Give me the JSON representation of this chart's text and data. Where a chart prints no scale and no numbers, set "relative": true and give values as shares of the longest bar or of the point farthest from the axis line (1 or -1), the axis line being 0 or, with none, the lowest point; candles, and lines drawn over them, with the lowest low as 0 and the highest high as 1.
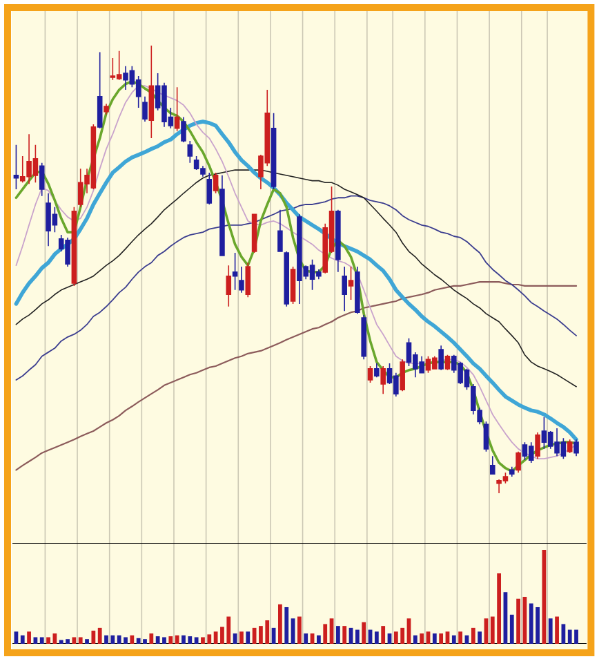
{
  "chart_data": [
    {
      "type": "candlestick",
      "relative": true,
      "categories": [
        null,
        null,
        null,
        null,
        null,
        null,
        null,
        null,
        null,
        null,
        null,
        null,
        null,
        null,
        null,
        null,
        null,
        null,
        null,
        null,
        null,
        null,
        null,
        null,
        null,
        null,
        null,
        null,
        null,
        null,
        null,
        null,
        null,
        null,
        null,
        null,
        null,
        null,
        null,
        null,
        null,
        null,
        null,
        null,
        null,
        null,
        null,
        null,
        null,
        null,
        null,
        null,
        null,
        null,
        null,
        null,
        null,
        null,
        null,
        null,
        null,
        null,
        null,
        null,
        null,
        null,
        null,
        null,
        null,
        null,
        null,
        null,
        null,
        null,
        null,
        null,
        null,
        null,
        null,
        null,
        null,
        null,
        null,
        null,
        null,
        null,
        null,
        null
      ],
      "ohlc": [
        [
          0.71,
          0.778,
          0.679,
          0.704
        ],
        [
          0.698,
          0.753,
          0.694,
          0.707
        ],
        [
          0.707,
          0.802,
          0.691,
          0.741
        ],
        [
          0.71,
          0.778,
          0.694,
          0.747
        ],
        [
          0.731,
          0.738,
          0.664,
          0.679
        ],
        [
          0.648,
          0.67,
          0.552,
          0.586
        ],
        [
          0.623,
          0.639,
          0.583,
          0.599
        ],
        [
          0.568,
          0.577,
          0.54,
          0.546
        ],
        [
          0.565,
          0.571,
          0.506,
          0.512
        ],
        [
          0.469,
          0.639,
          0.463,
          0.63
        ],
        [
          0.645,
          0.725,
          0.639,
          0.694
        ],
        [
          0.691,
          0.725,
          0.67,
          0.71
        ],
        [
          0.682,
          0.824,
          0.679,
          0.818
        ],
        [
          0.886,
          0.985,
          0.815,
          0.818
        ],
        [
          0.852,
          0.87,
          0.846,
          0.864
        ],
        [
          0.929,
          0.972,
          0.923,
          0.932
        ],
        [
          0.926,
          0.988,
          0.923,
          0.935
        ],
        [
          0.938,
          0.954,
          0.901,
          0.923
        ],
        [
          0.944,
          0.954,
          0.907,
          0.914
        ],
        [
          0.923,
          0.932,
          0.861,
          0.886
        ],
        [
          0.873,
          0.886,
          0.83,
          0.836
        ],
        [
          0.833,
          1,
          0.793,
          0.91
        ],
        [
          0.91,
          0.938,
          0.855,
          0.861
        ],
        [
          0.91,
          0.917,
          0.818,
          0.83
        ],
        [
          0.84,
          0.861,
          0.815,
          0.821
        ],
        [
          0.815,
          0.907,
          0.809,
          0.84
        ],
        [
          0.83,
          0.84,
          0.784,
          0.787
        ],
        [
          0.778,
          0.787,
          0.738,
          0.753
        ],
        [
          0.744,
          0.753,
          0.722,
          0.725
        ],
        [
          0.725,
          0.731,
          0.707,
          0.713
        ],
        [
          0.701,
          0.716,
          0.645,
          0.648
        ],
        [
          0.676,
          0.716,
          0.67,
          0.71
        ],
        [
          0.679,
          0.71,
          0.531,
          0.531
        ],
        [
          0.444,
          0.509,
          0.417,
          0.485
        ],
        [
          0.494,
          0.537,
          0.454,
          0.485
        ],
        [
          0.475,
          0.506,
          0.448,
          0.454
        ],
        [
          0.444,
          0.515,
          0.438,
          0.506
        ],
        [
          0.54,
          0.623,
          0.537,
          0.623
        ],
        [
          0.707,
          0.756,
          0.679,
          0.753
        ],
        [
          0.738,
          0.901,
          0.731,
          0.849
        ],
        [
          0.815,
          0.849,
          0.679,
          0.685
        ],
        [
          0.586,
          0.633,
          0.54,
          0.54
        ],
        [
          0.537,
          0.54,
          0.417,
          0.423
        ],
        [
          0.429,
          0.506,
          0.423,
          0.5
        ],
        [
          0.617,
          0.623,
          0.423,
          0.475
        ],
        [
          0.506,
          0.509,
          0.478,
          0.485
        ],
        [
          0.509,
          0.522,
          0.454,
          0.478
        ],
        [
          0.494,
          0.5,
          0.478,
          0.485
        ],
        [
          0.494,
          0.602,
          0.491,
          0.593
        ],
        [
          0.54,
          0.685,
          0.537,
          0.63
        ],
        [
          0.63,
          0.633,
          0.494,
          0.522
        ],
        [
          0.485,
          0.506,
          0.407,
          0.444
        ],
        [
          0.463,
          0.506,
          0.432,
          0.475
        ],
        [
          0.494,
          0.506,
          0.401,
          0.404
        ],
        [
          0.392,
          0.398,
          0.299,
          0.306
        ],
        [
          0.253,
          0.284,
          0.247,
          0.278
        ],
        [
          0.278,
          0.29,
          0.259,
          0.262
        ],
        [
          0.244,
          0.284,
          0.222,
          0.278
        ],
        [
          0.278,
          0.29,
          0.244,
          0.247
        ],
        [
          0.262,
          0.269,
          0.216,
          0.222
        ],
        [
          0.231,
          0.299,
          0.228,
          0.293
        ],
        [
          0.336,
          0.346,
          0.284,
          0.293
        ],
        [
          0.309,
          0.315,
          0.259,
          0.278
        ],
        [
          0.293,
          0.306,
          0.269,
          0.269
        ],
        [
          0.275,
          0.306,
          0.269,
          0.299
        ],
        [
          0.278,
          0.306,
          0.278,
          0.302
        ],
        [
          0.321,
          0.33,
          0.275,
          0.278
        ],
        [
          0.278,
          0.309,
          0.275,
          0.306
        ],
        [
          0.306,
          0.309,
          0.269,
          0.275
        ],
        [
          0.29,
          0.293,
          0.244,
          0.247
        ],
        [
          0.275,
          0.278,
          0.231,
          0.238
        ],
        [
          0.238,
          0.244,
          0.176,
          0.185
        ],
        [
          0.185,
          0.191,
          0.154,
          0.16
        ],
        [
          0.154,
          0.16,
          0.093,
          0.099
        ],
        [
          0.062,
          0.083,
          0.043,
          0.043
        ],
        [
          0.022,
          0.031,
          0,
          0.028
        ],
        [
          0.028,
          0.046,
          0.022,
          0.037
        ],
        [
          0.052,
          0.059,
          0.037,
          0.043
        ],
        [
          0.052,
          0.093,
          0.046,
          0.09
        ],
        [
          0.108,
          0.114,
          0.074,
          0.083
        ],
        [
          0.105,
          0.114,
          0.068,
          0.074
        ],
        [
          0.083,
          0.136,
          0.077,
          0.13
        ],
        [
          0.139,
          0.17,
          0.099,
          0.114
        ],
        [
          0.136,
          0.139,
          0.099,
          0.105
        ],
        [
          0.114,
          0.145,
          0.083,
          0.09
        ],
        [
          0.114,
          0.123,
          0.077,
          0.083
        ],
        [
          0.093,
          0.12,
          0.09,
          0.114
        ],
        [
          0.114,
          0.12,
          0.083,
          0.09
        ]
      ],
      "colors": [
        "#1f1f9f",
        "#cc1f1f",
        "#cc1f1f",
        "#cc1f1f",
        "#1f1f9f",
        "#1f1f9f",
        "#1f1f9f",
        "#1f1f9f",
        "#1f1f9f",
        "#cc1f1f",
        "#cc1f1f",
        "#cc1f1f",
        "#cc1f1f",
        "#1f1f9f",
        "#cc1f1f",
        "#cc1f1f",
        "#cc1f1f",
        "#1f1f9f",
        "#1f1f9f",
        "#1f1f9f",
        "#1f1f9f",
        "#cc1f1f",
        "#1f1f9f",
        "#1f1f9f",
        "#1f1f9f",
        "#cc1f1f",
        "#1f1f9f",
        "#1f1f9f",
        "#1f1f9f",
        "#1f1f9f",
        "#1f1f9f",
        "#cc1f1f",
        "#1f1f9f",
        "#cc1f1f",
        "#1f1f9f",
        "#1f1f9f",
        "#cc1f1f",
        "#cc1f1f",
        "#cc1f1f",
        "#cc1f1f",
        "#1f1f9f",
        "#1f1f9f",
        "#1f1f9f",
        "#cc1f1f",
        "#1f1f9f",
        "#1f1f9f",
        "#1f1f9f",
        "#1f1f9f",
        "#cc1f1f",
        "#cc1f1f",
        "#1f1f9f",
        "#1f1f9f",
        "#cc1f1f",
        "#1f1f9f",
        "#1f1f9f",
        "#cc1f1f",
        "#1f1f9f",
        "#cc1f1f",
        "#1f1f9f",
        "#1f1f9f",
        "#cc1f1f",
        "#1f1f9f",
        "#1f1f9f",
        "#1f1f9f",
        "#cc1f1f",
        "#cc1f1f",
        "#1f1f9f",
        "#cc1f1f",
        "#1f1f9f",
        "#1f1f9f",
        "#1f1f9f",
        "#1f1f9f",
        "#1f1f9f",
        "#1f1f9f",
        "#1f1f9f",
        "#cc1f1f",
        "#cc1f1f",
        "#1f1f9f",
        "#cc1f1f",
        "#1f1f9f",
        "#1f1f9f",
        "#cc1f1f",
        "#1f1f9f",
        "#1f1f9f",
        "#1f1f9f",
        "#1f1f9f",
        "#cc1f1f",
        "#1f1f9f"
      ],
      "series": [
        {
          "type": "line",
          "color": "#8c5b5b",
          "values": [
            0.052,
            0.062,
            0.071,
            0.08,
            0.09,
            0.096,
            0.102,
            0.108,
            0.114,
            0.12,
            0.127,
            0.133,
            0.139,
            0.148,
            0.157,
            0.164,
            0.173,
            0.185,
            0.194,
            0.204,
            0.213,
            0.222,
            0.231,
            0.241,
            0.247,
            0.253,
            0.259,
            0.265,
            0.269,
            0.275,
            0.281,
            0.284,
            0.29,
            0.296,
            0.302,
            0.306,
            0.312,
            0.315,
            0.318,
            0.324,
            0.33,
            0.336,
            0.343,
            0.349,
            0.355,
            0.361,
            0.367,
            0.37,
            0.377,
            0.383,
            0.392,
            0.398,
            0.404,
            0.407,
            0.414,
            0.417,
            0.42,
            0.423,
            0.426,
            0.429,
            0.435,
            0.438,
            0.441,
            0.444,
            0.448,
            0.454,
            0.457,
            0.46,
            0.463,
            0.463,
            0.466,
            0.469,
            0.472,
            0.472,
            0.472,
            0.472,
            0.469,
            0.466,
            0.466,
            0.463,
            0.463,
            0.463,
            0.463,
            0.463,
            0.463,
            0.463,
            0.463,
            0.463
          ]
        },
        {
          "type": "line",
          "color": "#3b3d8f",
          "values": [
            0.253,
            0.262,
            0.275,
            0.287,
            0.306,
            0.315,
            0.324,
            0.34,
            0.349,
            0.355,
            0.364,
            0.377,
            0.395,
            0.404,
            0.417,
            0.432,
            0.448,
            0.46,
            0.478,
            0.494,
            0.506,
            0.515,
            0.531,
            0.54,
            0.552,
            0.562,
            0.571,
            0.577,
            0.58,
            0.583,
            0.59,
            0.593,
            0.596,
            0.599,
            0.599,
            0.599,
            0.602,
            0.605,
            0.611,
            0.617,
            0.623,
            0.63,
            0.633,
            0.636,
            0.642,
            0.645,
            0.645,
            0.648,
            0.651,
            0.657,
            0.66,
            0.66,
            0.664,
            0.664,
            0.66,
            0.654,
            0.651,
            0.648,
            0.642,
            0.633,
            0.62,
            0.611,
            0.605,
            0.599,
            0.596,
            0.59,
            0.583,
            0.58,
            0.574,
            0.571,
            0.562,
            0.549,
            0.537,
            0.515,
            0.5,
            0.488,
            0.475,
            0.466,
            0.454,
            0.441,
            0.426,
            0.417,
            0.407,
            0.398,
            0.389,
            0.377,
            0.364,
            0.352
          ]
        },
        {
          "type": "line",
          "color": "#222222",
          "values": [
            0.377,
            0.389,
            0.398,
            0.41,
            0.423,
            0.432,
            0.444,
            0.454,
            0.46,
            0.466,
            0.472,
            0.478,
            0.485,
            0.497,
            0.509,
            0.519,
            0.531,
            0.546,
            0.562,
            0.577,
            0.59,
            0.602,
            0.617,
            0.633,
            0.645,
            0.657,
            0.67,
            0.682,
            0.694,
            0.704,
            0.71,
            0.713,
            0.716,
            0.719,
            0.722,
            0.722,
            0.722,
            0.722,
            0.722,
            0.719,
            0.716,
            0.713,
            0.71,
            0.707,
            0.704,
            0.701,
            0.698,
            0.698,
            0.694,
            0.694,
            0.688,
            0.679,
            0.673,
            0.667,
            0.66,
            0.645,
            0.63,
            0.614,
            0.599,
            0.583,
            0.559,
            0.54,
            0.528,
            0.512,
            0.5,
            0.488,
            0.478,
            0.466,
            0.454,
            0.444,
            0.435,
            0.423,
            0.414,
            0.401,
            0.392,
            0.383,
            0.367,
            0.352,
            0.336,
            0.309,
            0.293,
            0.284,
            0.278,
            0.272,
            0.265,
            0.256,
            0.247,
            0.238
          ]
        },
        {
          "type": "line",
          "color": "#3fa6d6",
          "values": [
            0.423,
            0.448,
            0.469,
            0.485,
            0.503,
            0.515,
            0.534,
            0.546,
            0.556,
            0.568,
            0.59,
            0.614,
            0.645,
            0.67,
            0.694,
            0.716,
            0.728,
            0.741,
            0.75,
            0.756,
            0.762,
            0.769,
            0.775,
            0.784,
            0.79,
            0.802,
            0.812,
            0.821,
            0.827,
            0.83,
            0.827,
            0.821,
            0.802,
            0.784,
            0.762,
            0.744,
            0.731,
            0.716,
            0.704,
            0.694,
            0.682,
            0.667,
            0.648,
            0.633,
            0.617,
            0.608,
            0.599,
            0.59,
            0.58,
            0.568,
            0.559,
            0.552,
            0.546,
            0.54,
            0.531,
            0.522,
            0.509,
            0.497,
            0.478,
            0.454,
            0.438,
            0.423,
            0.41,
            0.395,
            0.383,
            0.373,
            0.361,
            0.349,
            0.336,
            0.321,
            0.306,
            0.29,
            0.278,
            0.262,
            0.247,
            0.231,
            0.216,
            0.207,
            0.198,
            0.191,
            0.185,
            0.182,
            0.176,
            0.167,
            0.157,
            0.148,
            0.136,
            0.12
          ]
        },
        {
          "type": "line",
          "color": "#c9a3cc",
          "values": [
            0.509,
            0.552,
            0.599,
            0.645,
            0.682,
            0.676,
            0.654,
            0.633,
            0.617,
            0.608,
            0.614,
            0.639,
            0.676,
            0.725,
            0.769,
            0.802,
            0.84,
            0.873,
            0.895,
            0.91,
            0.91,
            0.904,
            0.895,
            0.889,
            0.883,
            0.877,
            0.867,
            0.849,
            0.824,
            0.806,
            0.793,
            0.769,
            0.741,
            0.707,
            0.67,
            0.639,
            0.608,
            0.602,
            0.599,
            0.605,
            0.608,
            0.602,
            0.593,
            0.583,
            0.574,
            0.565,
            0.556,
            0.543,
            0.534,
            0.525,
            0.519,
            0.515,
            0.506,
            0.491,
            0.454,
            0.414,
            0.377,
            0.355,
            0.33,
            0.306,
            0.296,
            0.29,
            0.29,
            0.29,
            0.29,
            0.293,
            0.296,
            0.299,
            0.299,
            0.293,
            0.281,
            0.265,
            0.238,
            0.207,
            0.176,
            0.154,
            0.133,
            0.114,
            0.099,
            0.09,
            0.083,
            0.077,
            0.077,
            0.08,
            0.083,
            0.09,
            0.099,
            0.108
          ]
        },
        {
          "type": "line",
          "color": "#6aa72c",
          "values": [
            0.66,
            0.679,
            0.698,
            0.716,
            0.719,
            0.691,
            0.654,
            0.614,
            0.583,
            0.583,
            0.639,
            0.701,
            0.747,
            0.793,
            0.849,
            0.88,
            0.901,
            0.914,
            0.92,
            0.914,
            0.904,
            0.895,
            0.877,
            0.861,
            0.849,
            0.843,
            0.83,
            0.809,
            0.784,
            0.762,
            0.731,
            0.694,
            0.654,
            0.602,
            0.556,
            0.528,
            0.509,
            0.546,
            0.608,
            0.645,
            0.679,
            0.67,
            0.639,
            0.571,
            0.522,
            0.497,
            0.494,
            0.494,
            0.509,
            0.546,
            0.565,
            0.552,
            0.528,
            0.485,
            0.401,
            0.34,
            0.293,
            0.275,
            0.259,
            0.259,
            0.269,
            0.275,
            0.278,
            0.284,
            0.29,
            0.293,
            0.293,
            0.293,
            0.293,
            0.287,
            0.269,
            0.231,
            0.182,
            0.136,
            0.096,
            0.068,
            0.056,
            0.049,
            0.062,
            0.074,
            0.086,
            0.096,
            0.102,
            0.108,
            0.111,
            0.114,
            0.114,
            0.111
          ]
        }
      ]
    },
    {
      "type": "bar",
      "relative": true,
      "categories": [
        null,
        null,
        null,
        null,
        null,
        null,
        null,
        null,
        null,
        null,
        null,
        null,
        null,
        null,
        null,
        null,
        null,
        null,
        null,
        null,
        null,
        null,
        null,
        null,
        null,
        null,
        null,
        null,
        null,
        null,
        null,
        null,
        null,
        null,
        null,
        null,
        null,
        null,
        null,
        null,
        null,
        null,
        null,
        null,
        null,
        null,
        null,
        null,
        null,
        null,
        null,
        null,
        null,
        null,
        null,
        null,
        null,
        null,
        null,
        null,
        null,
        null,
        null,
        null,
        null,
        null,
        null,
        null,
        null,
        null,
        null,
        null,
        null,
        null,
        null,
        null,
        null,
        null,
        null,
        null,
        null,
        null,
        null,
        null,
        null,
        null,
        null,
        null
      ],
      "values": [
        0.13,
        0.09,
        0.13,
        0.07,
        0.07,
        0.07,
        0.11,
        0.04,
        0.05,
        0.07,
        0.07,
        0.05,
        0.14,
        0.17,
        0.09,
        0.09,
        0.09,
        0.07,
        0.09,
        0.06,
        0.05,
        0.11,
        0.08,
        0.07,
        0.08,
        0.09,
        0.09,
        0.08,
        0.07,
        0.07,
        0.1,
        0.13,
        0.18,
        0.29,
        0.11,
        0.13,
        0.13,
        0.17,
        0.19,
        0.25,
        0.17,
        0.42,
        0.39,
        0.27,
        0.29,
        0.11,
        0.11,
        0.09,
        0.21,
        0.27,
        0.19,
        0.19,
        0.17,
        0.15,
        0.23,
        0.15,
        0.13,
        0.19,
        0.11,
        0.13,
        0.17,
        0.27,
        0.09,
        0.11,
        0.13,
        0.11,
        0.11,
        0.13,
        0.09,
        0.13,
        0.09,
        0.17,
        0.13,
        0.27,
        0.29,
        0.75,
        0.55,
        0.31,
        0.48,
        0.5,
        0.43,
        0.39,
        1,
        0.27,
        0.29,
        0.21,
        0.15,
        0.15
      ],
      "colors": [
        "#1f1f9f",
        "#1f1f9f",
        "#cc1f1f",
        "#1f1f9f",
        "#1f1f9f",
        "#cc1f1f",
        "#cc1f1f",
        "#1f1f9f",
        "#1f1f9f",
        "#cc1f1f",
        "#cc1f1f",
        "#1f1f9f",
        "#cc1f1f",
        "#cc1f1f",
        "#1f1f9f",
        "#1f1f9f",
        "#1f1f9f",
        "#1f1f9f",
        "#cc1f1f",
        "#1f1f9f",
        "#1f1f9f",
        "#cc1f1f",
        "#1f1f9f",
        "#1f1f9f",
        "#cc1f1f",
        "#cc1f1f",
        "#1f1f9f",
        "#1f1f9f",
        "#1f1f9f",
        "#cc1f1f",
        "#cc1f1f",
        "#cc1f1f",
        "#cc1f1f",
        "#cc1f1f",
        "#1f1f9f",
        "#cc1f1f",
        "#1f1f9f",
        "#cc1f1f",
        "#cc1f1f",
        "#cc1f1f",
        "#1f1f9f",
        "#cc1f1f",
        "#1f1f9f",
        "#1f1f9f",
        "#cc1f1f",
        "#1f1f9f",
        "#cc1f1f",
        "#1f1f9f",
        "#cc1f1f",
        "#cc1f1f",
        "#1f1f9f",
        "#cc1f1f",
        "#1f1f9f",
        "#1f1f9f",
        "#cc1f1f",
        "#1f1f9f",
        "#1f1f9f",
        "#cc1f1f",
        "#1f1f9f",
        "#cc1f1f",
        "#cc1f1f",
        "#cc1f1f",
        "#1f1f9f",
        "#cc1f1f",
        "#cc1f1f",
        "#1f1f9f",
        "#cc1f1f",
        "#cc1f1f",
        "#1f1f9f",
        "#cc1f1f",
        "#1f1f9f",
        "#cc1f1f",
        "#1f1f9f",
        "#cc1f1f",
        "#cc1f1f",
        "#cc1f1f",
        "#1f1f9f",
        "#1f1f9f",
        "#cc1f1f",
        "#cc1f1f",
        "#1f1f9f",
        "#1f1f9f",
        "#cc1f1f",
        "#1f1f9f",
        "#cc1f1f",
        "#1f1f9f",
        "#1f1f9f",
        "#1f1f9f"
      ]
    }
  ]
}
